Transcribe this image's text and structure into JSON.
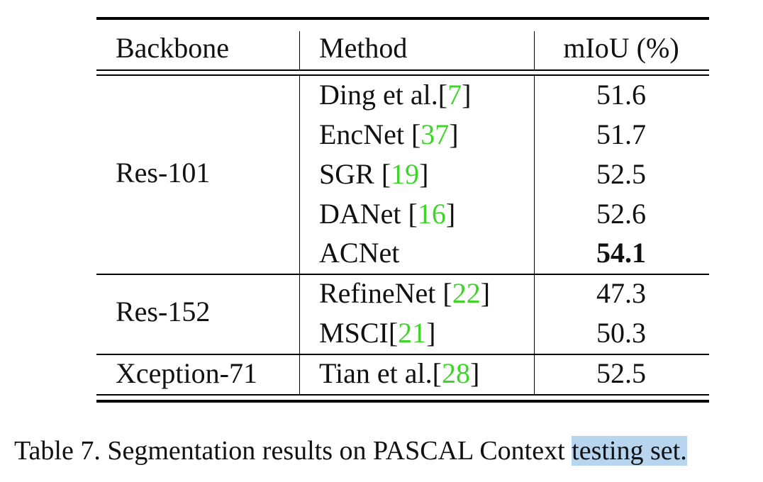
{
  "table": {
    "headers": {
      "backbone": "Backbone",
      "method": "Method",
      "miou": "mIoU (%)"
    },
    "groups": [
      {
        "backbone": "Res-101",
        "rows": [
          {
            "method": "Ding et al.",
            "cite_open": "[",
            "cite": "7",
            "cite_close": "]",
            "miou": "51.6"
          },
          {
            "method": "EncNet ",
            "cite_open": "[",
            "cite": "37",
            "cite_close": "]",
            "miou": "51.7"
          },
          {
            "method": "SGR ",
            "cite_open": "[",
            "cite": "19",
            "cite_close": "]",
            "miou": "52.5"
          },
          {
            "method": "DANet ",
            "cite_open": "[",
            "cite": "16",
            "cite_close": "]",
            "miou": "52.6"
          },
          {
            "method": "ACNet",
            "miou": "54.1"
          }
        ]
      },
      {
        "backbone": "Res-152",
        "rows": [
          {
            "method": "RefineNet ",
            "cite_open": "[",
            "cite": "22",
            "cite_close": "]",
            "miou": "47.3"
          },
          {
            "method": "MSCI",
            "cite_open": "[",
            "cite": "21",
            "cite_close": "]",
            "miou": "50.3"
          }
        ]
      },
      {
        "backbone": "Xception-71",
        "rows": [
          {
            "method": "Tian et al.",
            "cite_open": "[",
            "cite": "28",
            "cite_close": "]",
            "miou": "52.5"
          }
        ]
      }
    ]
  },
  "caption": {
    "main": "Table 7. Segmentation results on PASCAL Context ",
    "highlighted": "testing set."
  },
  "colors": {
    "citation": "#3fd42a",
    "selection_highlight": "#b7d5ee"
  }
}
